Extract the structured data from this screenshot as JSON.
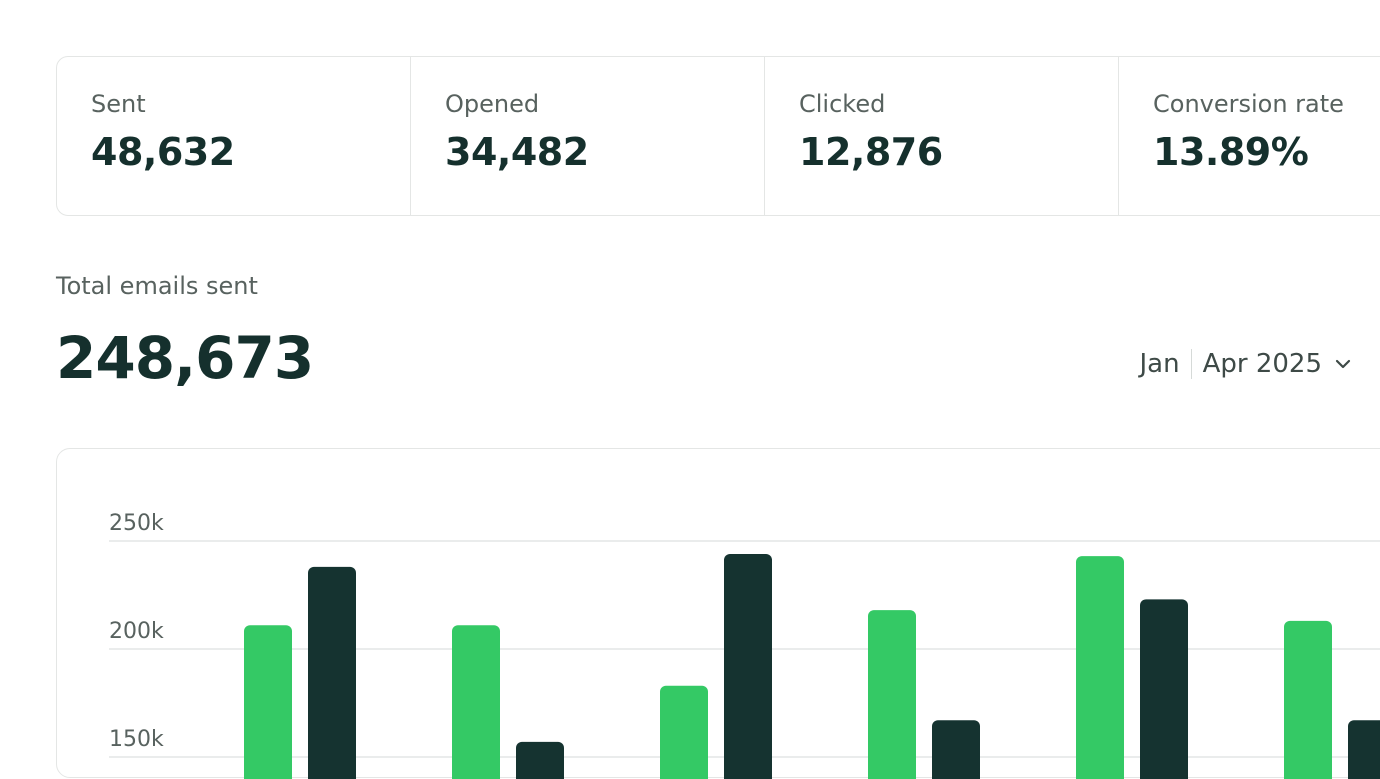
{
  "stats": [
    {
      "label": "Sent",
      "value": "48,632"
    },
    {
      "label": "Opened",
      "value": "34,482"
    },
    {
      "label": "Clicked",
      "value": "12,876"
    },
    {
      "label": "Conversion rate",
      "value": "13.89%"
    }
  ],
  "total": {
    "label": "Total emails sent",
    "value": "248,673"
  },
  "range": {
    "start": "Jan",
    "end": "Apr 2025"
  },
  "colors": {
    "series_a": "#34c965",
    "series_b": "#153330",
    "text_dark": "#15302d",
    "text_muted": "#58625f",
    "border": "#e4e6e5"
  },
  "chart_data": {
    "type": "bar",
    "y_ticks": [
      "250k",
      "200k",
      "150k"
    ],
    "y_tick_values": [
      250000,
      200000,
      150000
    ],
    "ylim_visible": [
      150000,
      250000
    ],
    "grid": true,
    "groups": [
      {
        "values": [
          211000,
          238000
        ]
      },
      {
        "values": [
          211000,
          157000
        ]
      },
      {
        "values": [
          183000,
          244000
        ]
      },
      {
        "values": [
          218000,
          167000
        ]
      },
      {
        "values": [
          243000,
          223000
        ]
      },
      {
        "values": [
          213000,
          167000
        ]
      }
    ],
    "series": [
      {
        "color": "#34c965"
      },
      {
        "color": "#153330"
      }
    ]
  }
}
